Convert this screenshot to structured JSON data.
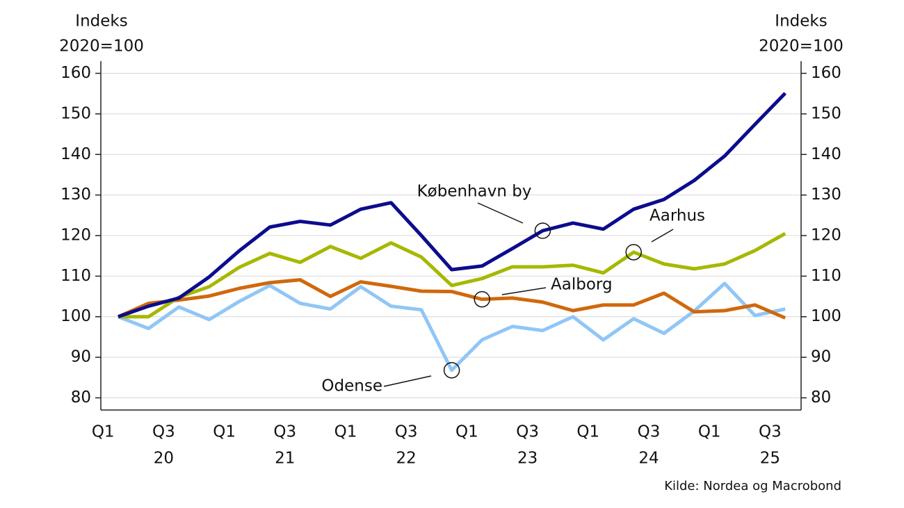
{
  "chart_data": {
    "type": "line",
    "ylabel": [
      "Indeks",
      "2020=100"
    ],
    "y2label": [
      "Indeks",
      "2020=100"
    ],
    "source": "Kilde: Nordea og Macrobond",
    "categories": [
      "Q1",
      null,
      "Q3",
      null,
      "Q1",
      null,
      "Q3",
      null,
      "Q1",
      null,
      "Q3",
      null,
      "Q1",
      null,
      "Q3",
      null,
      "Q1",
      null,
      "Q3",
      null,
      "Q1",
      null,
      "Q3"
    ],
    "years": [
      "20",
      "21",
      "22",
      "23",
      "24",
      "25"
    ],
    "series": [
      {
        "name": "København by",
        "color": "#0c0c8e",
        "values": [
          100,
          102.6,
          104.6,
          109.8,
          116.3,
          122.1,
          123.5,
          122.6,
          126.5,
          128.1,
          120.0,
          111.6,
          112.5,
          116.8,
          121.2,
          123.1,
          121.6,
          126.5,
          128.9,
          133.6,
          139.6,
          147.4,
          155.1
        ]
      },
      {
        "name": "Aarhus",
        "color": "#a6b800",
        "values": [
          100,
          100,
          104.8,
          107.4,
          112.2,
          115.6,
          113.4,
          117.3,
          114.4,
          118.2,
          114.7,
          107.7,
          109.4,
          112.3,
          112.3,
          112.7,
          110.8,
          115.9,
          113.0,
          111.8,
          113.0,
          116.3,
          120.5
        ]
      },
      {
        "name": "Aalborg",
        "color": "#d0680c",
        "values": [
          100,
          103.3,
          104.1,
          105.1,
          107.0,
          108.4,
          109.1,
          105.0,
          108.6,
          107.5,
          106.3,
          106.2,
          104.3,
          104.6,
          103.6,
          101.5,
          102.9,
          102.9,
          105.8,
          101.2,
          101.5,
          102.9,
          99.7
        ]
      },
      {
        "name": "Odense",
        "color": "#90c6f6",
        "values": [
          100,
          97.1,
          102.4,
          99.3,
          103.8,
          107.7,
          103.3,
          101.9,
          107.4,
          102.6,
          101.7,
          86.8,
          94.3,
          97.6,
          96.6,
          100.0,
          94.3,
          99.5,
          95.9,
          101.4,
          108.2,
          100.3,
          101.9
        ]
      }
    ],
    "ylim": [
      77,
      163
    ],
    "yticks": [
      80,
      90,
      100,
      110,
      120,
      130,
      140,
      150,
      160
    ],
    "y2lim": [
      77,
      163
    ],
    "y2ticks": [
      80,
      90,
      100,
      110,
      120,
      130,
      140,
      150,
      160
    ],
    "grid": true
  }
}
